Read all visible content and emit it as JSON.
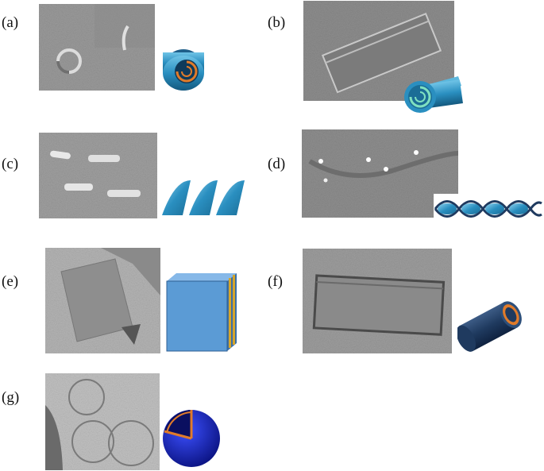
{
  "panels": [
    {
      "label": "(a)"
    },
    {
      "label": "(b)"
    },
    {
      "label": "(c)"
    },
    {
      "label": "(d)"
    },
    {
      "label": "(e)"
    },
    {
      "label": "(f)"
    },
    {
      "label": "(g)"
    }
  ],
  "colors": {
    "schematic_blue": "#2a8fc0",
    "schematic_dark_blue": "#1f3a5f",
    "sheet_blue": "#5b9bd5",
    "layer_gold": "#d6a52a",
    "core_orange": "#e07b2a",
    "sphere_blue": "#0a1fd0",
    "micrograph_gray": "#9a9a9a"
  }
}
